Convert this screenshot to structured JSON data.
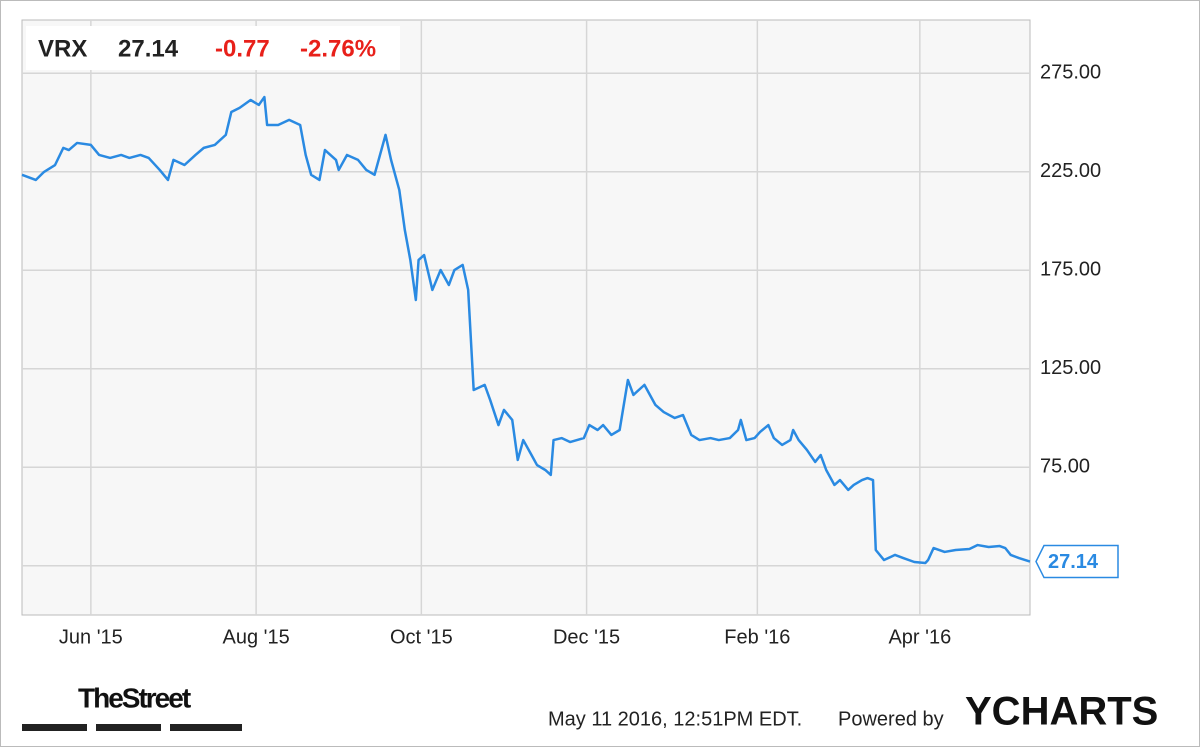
{
  "chart_data": {
    "type": "line",
    "ticker": "VRX",
    "price": "27.14",
    "change": "-0.77",
    "change_percent": "-2.76%",
    "timestamp": "May 11 2016, 12:51PM EDT.",
    "powered_by": "Powered by",
    "brand": "YCHARTS",
    "source_logo": "TheStreet",
    "x": [
      0,
      5,
      8,
      12,
      15,
      17,
      20,
      25,
      28,
      32,
      36,
      39,
      43,
      46,
      50,
      53,
      55,
      59,
      63,
      66,
      70,
      74,
      76,
      79,
      83,
      86,
      88,
      89,
      93,
      97,
      101,
      103,
      105,
      108,
      110,
      114,
      115,
      118,
      122,
      125,
      128,
      132,
      134,
      137,
      139,
      141,
      143,
      144,
      146,
      149,
      152,
      155,
      157,
      160,
      162,
      164,
      168,
      170,
      173,
      175,
      178,
      180,
      182,
      185,
      187,
      190,
      192,
      193,
      196,
      199,
      204,
      206,
      209,
      211,
      214,
      217,
      220,
      222,
      226,
      230,
      233,
      237,
      240,
      243,
      246,
      250,
      253,
      257,
      260,
      261,
      263,
      266,
      268,
      271,
      273,
      276,
      279,
      280,
      282,
      285,
      288,
      290,
      292,
      295,
      297,
      300,
      302,
      305,
      307,
      309,
      310,
      313,
      317,
      320,
      324,
      328,
      329,
      331,
      335,
      339,
      344,
      347,
      351,
      355,
      357,
      359,
      362,
      366
    ],
    "series": [
      {
        "name": "VRX",
        "color": "#2a8ae2",
        "values": [
          223.4,
          220.8,
          224.9,
          228.4,
          237.1,
          236.0,
          239.6,
          238.6,
          233.5,
          232.0,
          233.5,
          232.0,
          233.5,
          232.0,
          225.9,
          220.8,
          231.0,
          228.4,
          233.5,
          237.1,
          238.6,
          243.7,
          255.3,
          257.4,
          261.4,
          258.9,
          262.9,
          248.7,
          248.7,
          251.3,
          248.7,
          233.5,
          223.4,
          220.8,
          236.0,
          231.0,
          225.9,
          233.5,
          231.0,
          225.9,
          223.4,
          243.7,
          231.0,
          215.7,
          195.4,
          180.2,
          159.9,
          180.2,
          182.7,
          165.0,
          175.1,
          167.5,
          175.1,
          177.7,
          165.0,
          114.2,
          116.8,
          109.1,
          96.4,
          104.1,
          99.0,
          78.7,
          88.8,
          81.2,
          76.1,
          73.6,
          71.1,
          88.8,
          89.8,
          87.8,
          89.8,
          96.4,
          93.9,
          96.4,
          91.4,
          93.9,
          119.3,
          111.7,
          116.8,
          106.6,
          103.0,
          100.0,
          101.5,
          91.4,
          88.8,
          89.8,
          88.8,
          89.8,
          93.9,
          99.0,
          88.8,
          89.8,
          92.9,
          96.4,
          89.8,
          86.3,
          88.8,
          93.9,
          88.8,
          83.8,
          77.7,
          81.2,
          73.6,
          66.0,
          68.5,
          63.5,
          66.0,
          68.5,
          69.5,
          68.5,
          33.0,
          27.9,
          30.5,
          28.9,
          26.9,
          26.4,
          27.9,
          34.0,
          32.0,
          33.0,
          33.5,
          35.5,
          34.5,
          35.0,
          34.0,
          30.5,
          28.9,
          27.14
        ]
      }
    ],
    "xlim": [
      0,
      366
    ],
    "xticks": [
      {
        "value": 25,
        "label": "Jun '15"
      },
      {
        "value": 85,
        "label": "Aug '15"
      },
      {
        "value": 145,
        "label": "Oct '15"
      },
      {
        "value": 205,
        "label": "Dec '15"
      },
      {
        "value": 267,
        "label": "Feb '16"
      },
      {
        "value": 326,
        "label": "Apr '16"
      }
    ],
    "ylim": [
      0,
      302
    ],
    "yticks": [
      {
        "value": 25,
        "label": null
      },
      {
        "value": 75,
        "label": "75.00"
      },
      {
        "value": 125,
        "label": "125.00"
      },
      {
        "value": 175,
        "label": "175.00"
      },
      {
        "value": 225,
        "label": "225.00"
      },
      {
        "value": 275,
        "label": "275.00"
      }
    ],
    "grid": true
  }
}
